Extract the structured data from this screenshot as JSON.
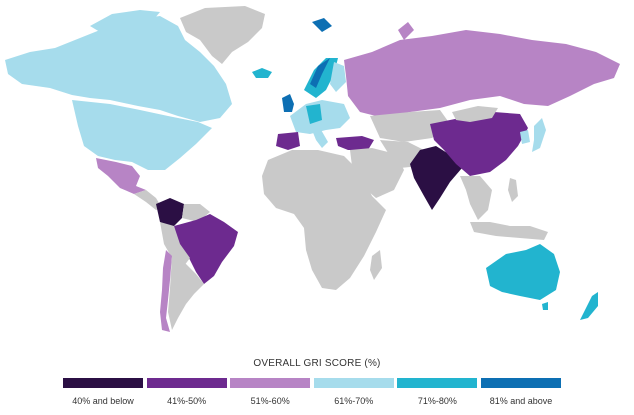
{
  "legend": {
    "title": "OVERALL GRI SCORE (%)",
    "items": [
      {
        "label": "40% and below",
        "color": "#2b0f44"
      },
      {
        "label": "41%-50%",
        "color": "#6d2a8f"
      },
      {
        "label": "51%-60%",
        "color": "#b784c5"
      },
      {
        "label": "61%-70%",
        "color": "#a6dcec"
      },
      {
        "label": "71%-80%",
        "color": "#22b4cf"
      },
      {
        "label": "81% and above",
        "color": "#0d6fb3"
      }
    ]
  },
  "colors": {
    "no_data": "#c9c9c9",
    "background": "#ffffff"
  }
}
